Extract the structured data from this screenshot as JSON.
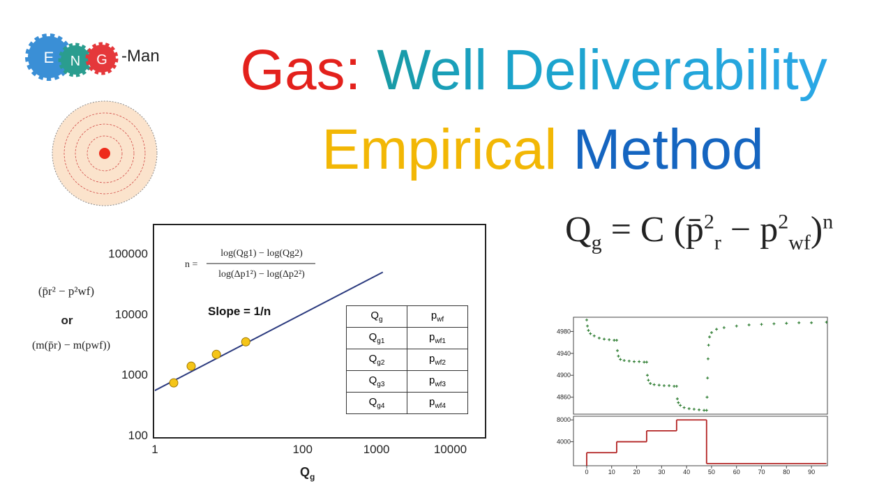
{
  "logo": {
    "letters": [
      "E",
      "N",
      "G"
    ],
    "suffix": "-Man"
  },
  "title": {
    "line1": [
      "Gas:",
      "Well Deliverability"
    ],
    "line2": [
      "Empirical",
      "Method"
    ]
  },
  "formula": {
    "q": "Q",
    "g": "g",
    "eq": "= C (",
    "p": "p̄",
    "two": "2",
    "r": "r",
    "minus": "− p",
    "two2": "2",
    "wf": "wf",
    "close": ")",
    "n": "n"
  },
  "chart_data": [
    {
      "type": "loglog",
      "xlabel": "Q",
      "xlabel_sub": "g",
      "ylabel": {
        "line1": "(p̄r² − p²wf)",
        "or": "or",
        "line2": "(m(p̄r) − m(pwf))"
      },
      "formula": {
        "lhs": "n =",
        "num": "log(Qg1) − log(Qg2)",
        "den": "log(Δp1²) − log(Δp2²)"
      },
      "annotation": "Slope = 1/n",
      "table": {
        "header": [
          {
            "main": "Q",
            "sub": "g"
          },
          {
            "main": "p",
            "sub": "wf"
          }
        ],
        "rows": [
          [
            {
              "main": "Q",
              "sub": "g1"
            },
            {
              "main": "p",
              "sub": "wf1"
            }
          ],
          [
            {
              "main": "Q",
              "sub": "g2"
            },
            {
              "main": "p",
              "sub": "wf2"
            }
          ],
          [
            {
              "main": "Q",
              "sub": "g3"
            },
            {
              "main": "p",
              "sub": "wf3"
            }
          ],
          [
            {
              "main": "Q",
              "sub": "g4"
            },
            {
              "main": "p",
              "sub": "wf4"
            }
          ]
        ]
      },
      "xlim": [
        1,
        30000
      ],
      "ylim": [
        90,
        300000
      ],
      "xticks": [
        1,
        100,
        1000,
        10000
      ],
      "yticks": [
        100,
        1000,
        10000,
        100000
      ],
      "points": {
        "color": "#f5c518",
        "x": [
          1.8,
          3.1,
          6.8,
          17
        ],
        "values": [
          728,
          1374,
          2150,
          3470
        ]
      },
      "line": {
        "color": "#2b3a7e",
        "x": [
          1,
          1220
        ],
        "values": [
          545,
          49000
        ]
      }
    },
    {
      "type": "scatter",
      "color": "#2e7d32",
      "x": [
        0,
        0.3,
        0.7,
        1.5,
        3,
        5,
        7,
        9,
        11,
        12,
        12.3,
        12.7,
        13.5,
        15,
        17,
        19,
        21,
        23,
        24,
        24.3,
        24.7,
        25.5,
        27,
        29,
        31,
        33,
        35,
        36,
        36.3,
        36.7,
        37.5,
        39,
        41,
        43,
        45,
        47,
        48,
        48.2,
        48.4,
        48.6,
        48.8,
        49.2,
        50,
        52,
        55,
        60,
        65,
        70,
        75,
        80,
        85,
        90,
        96
      ],
      "values": [
        5001,
        4990,
        4982,
        4976,
        4972,
        4968,
        4966,
        4965,
        4964,
        4964,
        4945,
        4935,
        4929,
        4927,
        4926,
        4925,
        4925,
        4924,
        4924,
        4900,
        4891,
        4885,
        4883,
        4882,
        4881,
        4881,
        4880,
        4880,
        4857,
        4850,
        4845,
        4841,
        4839,
        4838,
        4837,
        4836,
        4836,
        4860,
        4895,
        4930,
        4955,
        4970,
        4978,
        4984,
        4987,
        4990,
        4992,
        4993,
        4994,
        4995,
        4996,
        4996,
        4997
      ],
      "xlim": [
        -5.3,
        96.4
      ],
      "ylim": [
        4829,
        5006
      ],
      "yticks": [
        4860,
        4900,
        4940,
        4980
      ]
    },
    {
      "type": "step",
      "color": "#b22222",
      "x": [
        0,
        12,
        24,
        36,
        48,
        96
      ],
      "values": [
        2000,
        4000,
        6000,
        8000,
        0,
        0
      ],
      "xlim": [
        -5.3,
        96.4
      ],
      "ylim": [
        -400,
        8670
      ],
      "xticks": [
        0,
        10,
        20,
        30,
        40,
        50,
        60,
        70,
        80,
        90
      ],
      "yticks": [
        4000,
        8000
      ]
    }
  ]
}
